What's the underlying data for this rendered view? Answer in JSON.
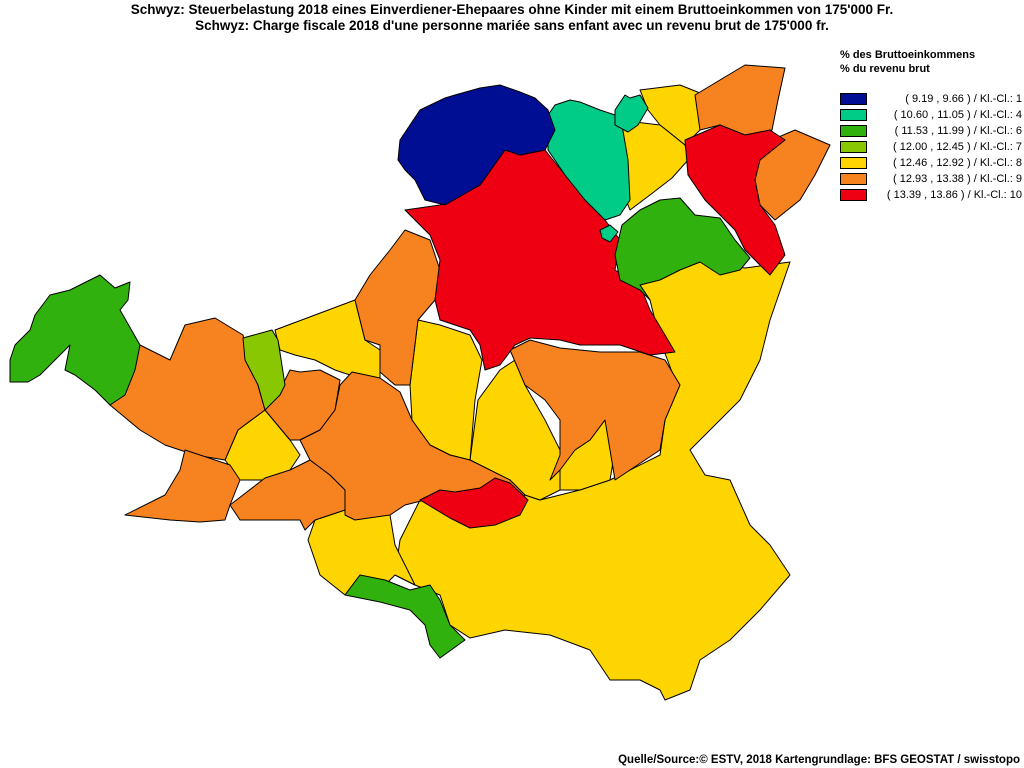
{
  "title": {
    "line1": "Schwyz: Steuerbelastung 2018 eines Einverdiener-Ehepaares ohne Kinder mit einem Bruttoeinkommen von 175'000 Fr.",
    "line2": "Schwyz: Charge fiscale 2018 d'une personne mariée sans enfant avec un revenu brut de 175'000 fr."
  },
  "legend": {
    "title_de": "% des Bruttoeinkommens",
    "title_fr": "% du revenu brut",
    "items": [
      {
        "label": "( 9.19 , 9.66 ) / Kl.-Cl.: 1",
        "color": "#000e94"
      },
      {
        "label": "( 10.60 , 11.05 ) / Kl.-Cl.: 4",
        "color": "#00cc88"
      },
      {
        "label": "( 11.53 , 11.99 ) / Kl.-Cl.: 6",
        "color": "#31b10d"
      },
      {
        "label": "( 12.00 , 12.45 ) / Kl.-Cl.: 7",
        "color": "#89c703"
      },
      {
        "label": "( 12.46 , 12.92 ) / Kl.-Cl.: 8",
        "color": "#ffd500"
      },
      {
        "label": "( 12.93 , 13.38 ) / Kl.-Cl.: 9",
        "color": "#f78220"
      },
      {
        "label": "( 13.39 , 13.86 ) / Kl.-Cl.: 10",
        "color": "#ee0012"
      }
    ]
  },
  "source": "Quelle/Source:© ESTV, 2018 Kartengrundlage: BFS GEOSTAT / swisstopo"
}
